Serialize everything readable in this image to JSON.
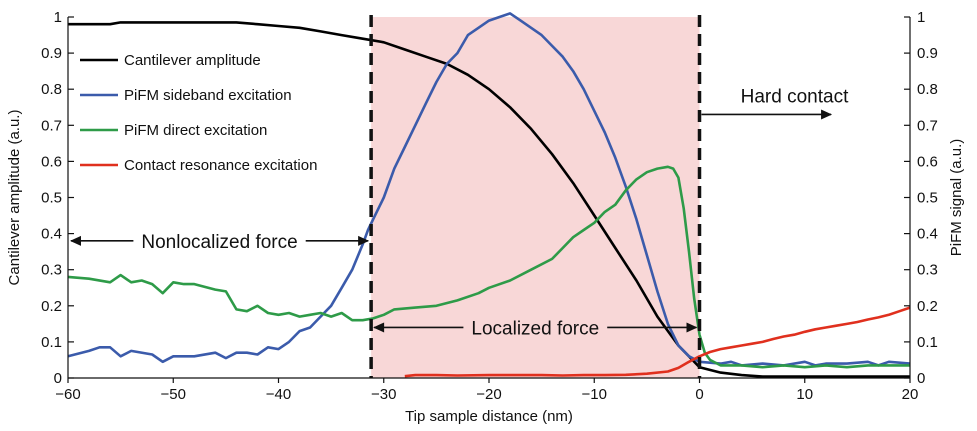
{
  "chart_data": {
    "type": "line",
    "xlabel": "Tip sample distance (nm)",
    "ylabel_left": "Cantilever amplitude (a.u.)",
    "ylabel_right": "PiFM signal (a.u.)",
    "xlim": [
      -60,
      20
    ],
    "ylim": [
      0,
      1
    ],
    "x_ticks": [
      -60,
      -50,
      -40,
      -30,
      -20,
      -10,
      0,
      10,
      20
    ],
    "x_tick_labels": [
      "−60",
      "−50",
      "−40",
      "−30",
      "−20",
      "−10",
      "0",
      "10",
      "20"
    ],
    "y_ticks": [
      0,
      0.1,
      0.2,
      0.3,
      0.4,
      0.5,
      0.6,
      0.7,
      0.8,
      0.9,
      1
    ],
    "y_tick_labels": [
      "0",
      "0.1",
      "0.2",
      "0.3",
      "0.4",
      "0.5",
      "0.6",
      "0.7",
      "0.8",
      "0.9",
      "1"
    ],
    "legend_placement": "top-left",
    "shaded_region": {
      "x_start": -31.2,
      "x_end": 0,
      "color": "#f8d7d7"
    },
    "boundary_lines": [
      -31.2,
      0
    ],
    "series": [
      {
        "name": "Cantilever amplitude",
        "color": "#000000",
        "points": [
          [
            -60,
            0.98
          ],
          [
            -56,
            0.98
          ],
          [
            -55,
            0.985
          ],
          [
            -44,
            0.985
          ],
          [
            -42,
            0.98
          ],
          [
            -40,
            0.975
          ],
          [
            -38,
            0.97
          ],
          [
            -36,
            0.96
          ],
          [
            -34,
            0.95
          ],
          [
            -32,
            0.94
          ],
          [
            -30,
            0.93
          ],
          [
            -28,
            0.91
          ],
          [
            -26,
            0.89
          ],
          [
            -24,
            0.87
          ],
          [
            -22,
            0.84
          ],
          [
            -20,
            0.8
          ],
          [
            -18,
            0.75
          ],
          [
            -16,
            0.69
          ],
          [
            -14,
            0.62
          ],
          [
            -12,
            0.54
          ],
          [
            -10,
            0.45
          ],
          [
            -8,
            0.36
          ],
          [
            -6,
            0.27
          ],
          [
            -4,
            0.17
          ],
          [
            -2,
            0.09
          ],
          [
            0,
            0.03
          ],
          [
            2,
            0.015
          ],
          [
            4,
            0.008
          ],
          [
            6,
            0.004
          ],
          [
            10,
            0.004
          ],
          [
            20,
            0.004
          ]
        ]
      },
      {
        "name": "PiFM sideband excitation",
        "color": "#3b5bab",
        "points": [
          [
            -60,
            0.06
          ],
          [
            -58,
            0.075
          ],
          [
            -57,
            0.085
          ],
          [
            -56,
            0.085
          ],
          [
            -55,
            0.06
          ],
          [
            -54,
            0.075
          ],
          [
            -52,
            0.065
          ],
          [
            -51,
            0.045
          ],
          [
            -50,
            0.06
          ],
          [
            -48,
            0.06
          ],
          [
            -46,
            0.07
          ],
          [
            -45,
            0.055
          ],
          [
            -44,
            0.07
          ],
          [
            -43,
            0.07
          ],
          [
            -42,
            0.065
          ],
          [
            -41,
            0.085
          ],
          [
            -40,
            0.08
          ],
          [
            -39,
            0.1
          ],
          [
            -38,
            0.13
          ],
          [
            -37,
            0.14
          ],
          [
            -36,
            0.17
          ],
          [
            -35,
            0.2
          ],
          [
            -34,
            0.25
          ],
          [
            -33,
            0.3
          ],
          [
            -32,
            0.37
          ],
          [
            -31.5,
            0.41
          ],
          [
            -31,
            0.44
          ],
          [
            -30,
            0.5
          ],
          [
            -29,
            0.58
          ],
          [
            -28,
            0.64
          ],
          [
            -27,
            0.7
          ],
          [
            -26,
            0.76
          ],
          [
            -25,
            0.82
          ],
          [
            -24,
            0.87
          ],
          [
            -23,
            0.9
          ],
          [
            -22,
            0.95
          ],
          [
            -21,
            0.97
          ],
          [
            -20,
            0.99
          ],
          [
            -19,
            1.0
          ],
          [
            -18,
            1.01
          ],
          [
            -17,
            0.99
          ],
          [
            -16,
            0.97
          ],
          [
            -15,
            0.95
          ],
          [
            -14,
            0.92
          ],
          [
            -13,
            0.89
          ],
          [
            -12,
            0.85
          ],
          [
            -11,
            0.8
          ],
          [
            -10,
            0.74
          ],
          [
            -9,
            0.68
          ],
          [
            -8,
            0.61
          ],
          [
            -7,
            0.53
          ],
          [
            -6,
            0.44
          ],
          [
            -5,
            0.34
          ],
          [
            -4,
            0.24
          ],
          [
            -3,
            0.15
          ],
          [
            -2,
            0.09
          ],
          [
            -1,
            0.06
          ],
          [
            0,
            0.045
          ],
          [
            2,
            0.04
          ],
          [
            3,
            0.045
          ],
          [
            4,
            0.035
          ],
          [
            6,
            0.04
          ],
          [
            8,
            0.035
          ],
          [
            10,
            0.045
          ],
          [
            11,
            0.035
          ],
          [
            12,
            0.04
          ],
          [
            14,
            0.04
          ],
          [
            16,
            0.045
          ],
          [
            17,
            0.035
          ],
          [
            18,
            0.045
          ],
          [
            20,
            0.04
          ]
        ]
      },
      {
        "name": "PiFM direct excitation",
        "color": "#2e9b48",
        "points": [
          [
            -60,
            0.28
          ],
          [
            -58,
            0.275
          ],
          [
            -56,
            0.265
          ],
          [
            -55,
            0.285
          ],
          [
            -54,
            0.265
          ],
          [
            -53,
            0.27
          ],
          [
            -52,
            0.26
          ],
          [
            -51,
            0.235
          ],
          [
            -50,
            0.265
          ],
          [
            -49,
            0.26
          ],
          [
            -48,
            0.26
          ],
          [
            -46,
            0.245
          ],
          [
            -45,
            0.24
          ],
          [
            -44,
            0.19
          ],
          [
            -43,
            0.185
          ],
          [
            -42,
            0.2
          ],
          [
            -41,
            0.18
          ],
          [
            -40,
            0.175
          ],
          [
            -39,
            0.18
          ],
          [
            -38,
            0.17
          ],
          [
            -37,
            0.175
          ],
          [
            -36,
            0.18
          ],
          [
            -35,
            0.17
          ],
          [
            -34,
            0.18
          ],
          [
            -33,
            0.16
          ],
          [
            -32,
            0.16
          ],
          [
            -31,
            0.165
          ],
          [
            -30,
            0.175
          ],
          [
            -29,
            0.19
          ],
          [
            -27,
            0.195
          ],
          [
            -25,
            0.2
          ],
          [
            -23,
            0.215
          ],
          [
            -21,
            0.235
          ],
          [
            -20,
            0.25
          ],
          [
            -18,
            0.27
          ],
          [
            -16,
            0.3
          ],
          [
            -14,
            0.33
          ],
          [
            -13,
            0.36
          ],
          [
            -12,
            0.39
          ],
          [
            -11,
            0.41
          ],
          [
            -10,
            0.43
          ],
          [
            -9,
            0.46
          ],
          [
            -8,
            0.48
          ],
          [
            -7,
            0.52
          ],
          [
            -6,
            0.55
          ],
          [
            -5,
            0.57
          ],
          [
            -4,
            0.58
          ],
          [
            -3,
            0.585
          ],
          [
            -2.5,
            0.58
          ],
          [
            -2,
            0.555
          ],
          [
            -1.5,
            0.47
          ],
          [
            -1,
            0.35
          ],
          [
            -0.5,
            0.22
          ],
          [
            0,
            0.12
          ],
          [
            0.5,
            0.07
          ],
          [
            1,
            0.05
          ],
          [
            2,
            0.035
          ],
          [
            4,
            0.035
          ],
          [
            6,
            0.03
          ],
          [
            8,
            0.035
          ],
          [
            10,
            0.03
          ],
          [
            12,
            0.035
          ],
          [
            14,
            0.03
          ],
          [
            16,
            0.035
          ],
          [
            18,
            0.035
          ],
          [
            20,
            0.035
          ]
        ]
      },
      {
        "name": "Contact resonance excitation",
        "color": "#e0301e",
        "points": [
          [
            -28,
            0.005
          ],
          [
            -27,
            0.008
          ],
          [
            -25,
            0.008
          ],
          [
            -23,
            0.007
          ],
          [
            -20,
            0.008
          ],
          [
            -17,
            0.008
          ],
          [
            -15,
            0.008
          ],
          [
            -13,
            0.007
          ],
          [
            -11,
            0.008
          ],
          [
            -9,
            0.008
          ],
          [
            -7,
            0.009
          ],
          [
            -5,
            0.012
          ],
          [
            -3,
            0.018
          ],
          [
            -2,
            0.028
          ],
          [
            -1,
            0.045
          ],
          [
            0,
            0.06
          ],
          [
            1,
            0.072
          ],
          [
            2,
            0.08
          ],
          [
            3,
            0.085
          ],
          [
            4,
            0.09
          ],
          [
            5,
            0.095
          ],
          [
            6,
            0.1
          ],
          [
            7,
            0.108
          ],
          [
            8,
            0.115
          ],
          [
            9,
            0.12
          ],
          [
            10,
            0.128
          ],
          [
            11,
            0.135
          ],
          [
            12,
            0.14
          ],
          [
            13,
            0.145
          ],
          [
            14,
            0.15
          ],
          [
            15,
            0.155
          ],
          [
            16,
            0.162
          ],
          [
            17,
            0.168
          ],
          [
            18,
            0.175
          ],
          [
            19,
            0.185
          ],
          [
            20,
            0.195
          ]
        ]
      }
    ],
    "annotations": [
      {
        "text": "Nonlocalized force",
        "arrow": "both",
        "x_from": -60,
        "x_to": -31.2,
        "y": 0.38
      },
      {
        "text": "Localized force",
        "arrow": "both",
        "x_from": -31.2,
        "x_to": 0,
        "y": 0.14
      },
      {
        "text": "Hard contact",
        "arrow": "right",
        "x_from": 0,
        "x_to": 12.5,
        "y": 0.73
      }
    ]
  }
}
